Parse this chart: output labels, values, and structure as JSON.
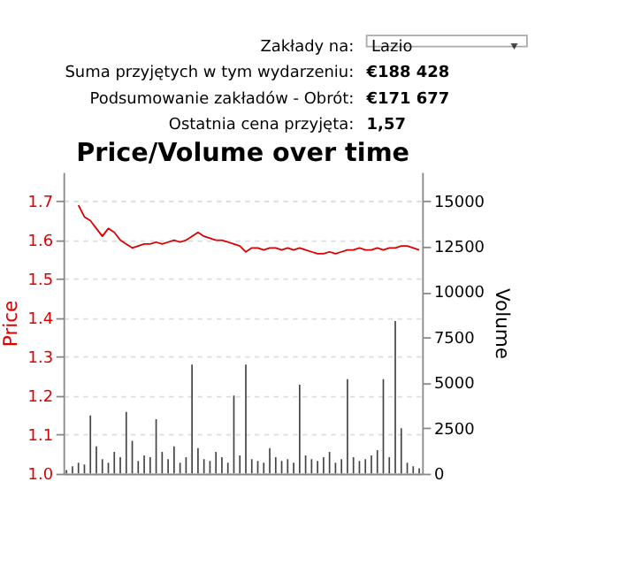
{
  "chart_data": {
    "type": "bar",
    "title": "Price/Volume over time",
    "annotations": [
      "Zakłady na:",
      "Lazio",
      "Suma przyjętych w tym wydarzeniu:",
      "€188 428",
      "Podsumowanie zakładów - Obrót:",
      "€171 677",
      "Ostatnia cena przyjęta:",
      "1,57"
    ],
    "categories": [
      null,
      null,
      null,
      null,
      null,
      null,
      null,
      null,
      null,
      null,
      null,
      null,
      null,
      null,
      null,
      null,
      null,
      null,
      null,
      null,
      null,
      null,
      null,
      null,
      null,
      null,
      null,
      null,
      null,
      null,
      null,
      null,
      null,
      null,
      null,
      null,
      null,
      null,
      null,
      null,
      null,
      null,
      null,
      null,
      null,
      null,
      null,
      null,
      null,
      null,
      null,
      null,
      null,
      null,
      null,
      null,
      null,
      null,
      null,
      null
    ],
    "series": [
      {
        "type": "line",
        "color": "#dd0000",
        "values": [
          null,
          null,
          1.69,
          1.66,
          1.65,
          1.63,
          1.61,
          1.63,
          1.62,
          1.6,
          1.59,
          1.58,
          1.585,
          1.59,
          1.59,
          1.595,
          1.59,
          1.595,
          1.6,
          1.595,
          1.6,
          1.61,
          1.62,
          1.61,
          1.605,
          1.6,
          1.6,
          1.595,
          1.59,
          1.585,
          1.57,
          1.58,
          1.58,
          1.575,
          1.58,
          1.58,
          1.575,
          1.58,
          1.575,
          1.58,
          1.575,
          1.57,
          1.565,
          1.565,
          1.57,
          1.565,
          1.57,
          1.575,
          1.575,
          1.58,
          1.575,
          1.575,
          1.58,
          1.575,
          1.58,
          1.58,
          1.585,
          1.585,
          1.58,
          1.575
        ]
      },
      {
        "axis": "y2",
        "color": "#444444",
        "values": [
          200,
          400,
          600,
          500,
          3200,
          1500,
          800,
          600,
          1200,
          900,
          3400,
          1800,
          700,
          1000,
          900,
          3000,
          1200,
          800,
          1500,
          600,
          900,
          6000,
          1400,
          800,
          700,
          1200,
          900,
          600,
          4300,
          1000,
          6000,
          800,
          700,
          600,
          1400,
          900,
          700,
          800,
          600,
          4900,
          1000,
          800,
          700,
          900,
          1200,
          600,
          800,
          5200,
          900,
          700,
          800,
          1000,
          1300,
          5200,
          900,
          8400,
          2500,
          600,
          400,
          300
        ]
      }
    ],
    "ylabel": "Price",
    "y2label": "Volume",
    "ylim": [
      1.0,
      1.775
    ],
    "yticks": [
      {
        "value": 1.0,
        "label": "1.0"
      },
      1.1,
      1.2,
      1.3,
      1.4,
      1.5,
      1.6,
      1.7
    ],
    "y2lim": [
      0,
      16600
    ],
    "y2ticks": [
      0,
      2500,
      5000,
      7500,
      10000,
      12500,
      15000
    ],
    "grid": "y"
  }
}
